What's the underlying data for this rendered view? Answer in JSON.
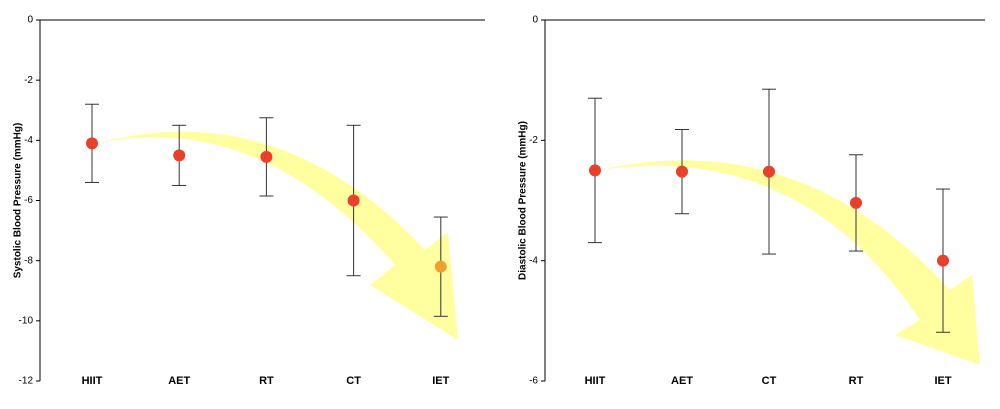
{
  "chart_data": [
    {
      "type": "errorbar",
      "y_label": "Systolic Blood Pressure (mmHg)",
      "categories": [
        "HIIT",
        "AET",
        "RT",
        "CT",
        "IET"
      ],
      "values": [
        -4.1,
        -4.5,
        -4.55,
        -6.0,
        -8.2
      ],
      "errors": [
        1.3,
        1.0,
        1.3,
        2.5,
        1.65
      ],
      "point_colors": [
        "#e8402a",
        "#e8402a",
        "#e8402a",
        "#e8402a",
        "#f0a030"
      ],
      "ylim": [
        -12,
        0
      ],
      "yticks": [
        -12,
        -10,
        -8,
        -6,
        -4,
        -2,
        0
      ]
    },
    {
      "type": "errorbar",
      "y_label": "Diastolic Blood Pressure (mmHg)",
      "categories": [
        "HIIT",
        "AET",
        "CT",
        "RT",
        "IET"
      ],
      "values": [
        -2.5,
        -2.52,
        -2.52,
        -3.04,
        -4.0
      ],
      "errors": [
        1.2,
        0.7,
        1.37,
        0.8,
        1.19
      ],
      "point_colors": [
        "#e8402a",
        "#e8402a",
        "#e8402a",
        "#e8402a",
        "#e8402a"
      ],
      "ylim": [
        -6,
        0
      ],
      "yticks": [
        -6,
        -4,
        -2,
        0
      ]
    }
  ]
}
